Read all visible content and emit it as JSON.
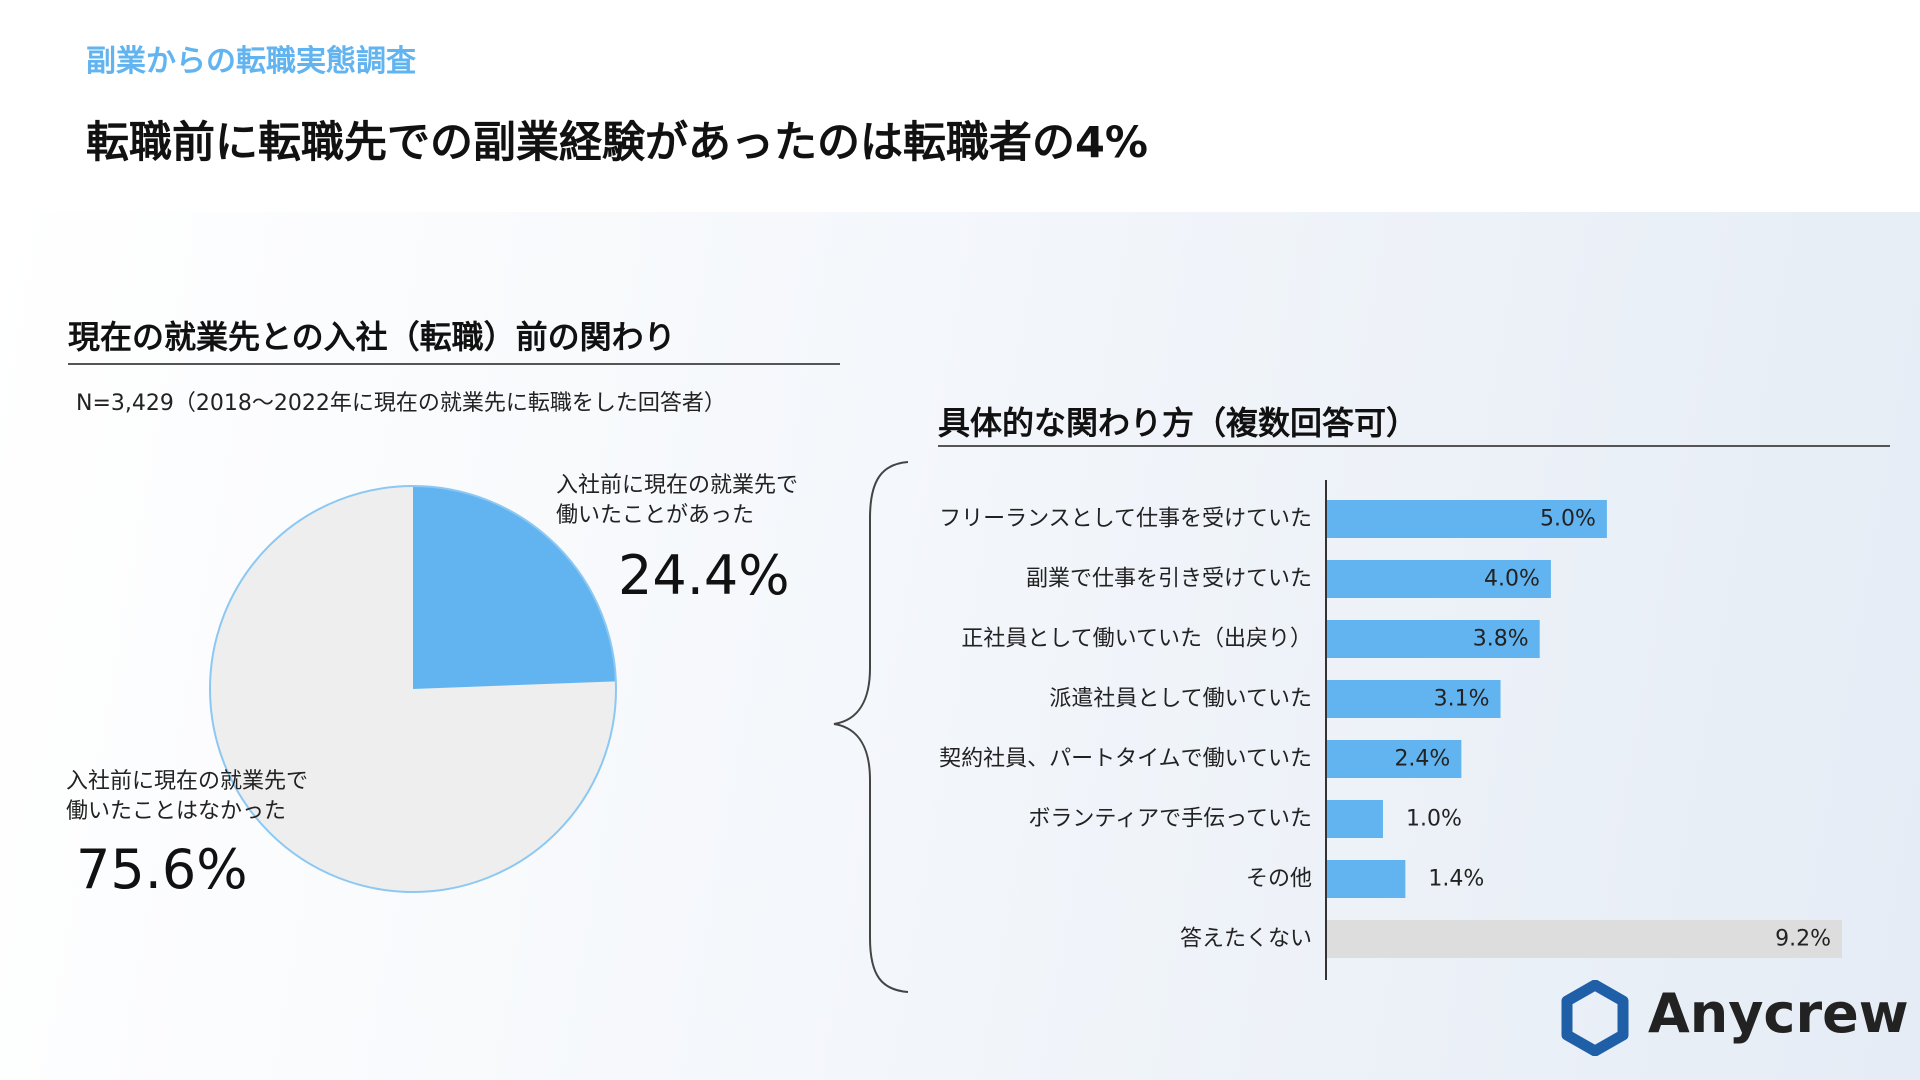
{
  "header": {
    "eyebrow": "副業からの転職実態調査",
    "title": "転職前に転職先での副業経験があったのは転職者の4%"
  },
  "left_section": {
    "title": "現在の就業先との入社（転職）前の関わり",
    "note": "N=3,429（2018～2022年に現在の就業先に転職をした回答者）"
  },
  "right_section": {
    "title": "具体的な関わり方（複数回答可）"
  },
  "logo": {
    "text": "Anycrew",
    "mark": "hexagon-logo-icon"
  },
  "colors": {
    "accent_blue": "#62b4f0",
    "pie_rest": "#eeeeee",
    "bar_gray": "#dddddd"
  },
  "chart_data": [
    {
      "type": "pie",
      "slices": [
        {
          "label_line1": "入社前に現在の就業先で",
          "label_line2": "働いたことがあった",
          "value": 24.4,
          "value_label": "24.4%",
          "color": "#62b4f0"
        },
        {
          "label_line1": "入社前に現在の就業先で",
          "label_line2": "働いたことはなかった",
          "value": 75.6,
          "value_label": "75.6%",
          "color": "#eeeeee"
        }
      ]
    },
    {
      "type": "bar",
      "orientation": "horizontal",
      "categories": [
        "フリーランスとして仕事を受けていた",
        "副業で仕事を引き受けていた",
        "正社員として働いていた（出戻り）",
        "派遣社員として働いていた",
        "契約社員、パートタイムで働いていた",
        "ボランティアで手伝っていた",
        "その他",
        "答えたくない"
      ],
      "values": [
        5.0,
        4.0,
        3.8,
        3.1,
        2.4,
        1.0,
        1.4,
        9.2
      ],
      "value_labels": [
        "5.0%",
        "4.0%",
        "3.8%",
        "3.1%",
        "2.4%",
        "1.0%",
        "1.4%",
        "9.2%"
      ],
      "colors": [
        "#62b4f0",
        "#62b4f0",
        "#62b4f0",
        "#62b4f0",
        "#62b4f0",
        "#62b4f0",
        "#62b4f0",
        "#dddddd"
      ],
      "xlim": [
        0,
        9.2
      ]
    }
  ]
}
